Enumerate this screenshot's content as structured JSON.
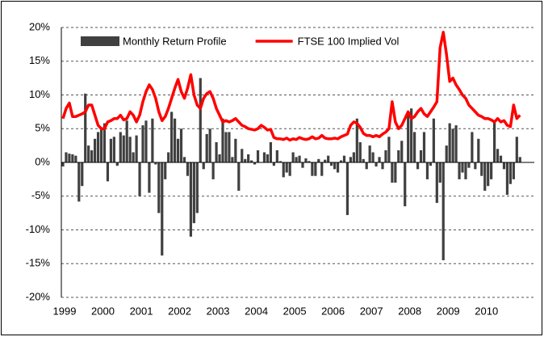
{
  "chart_data": {
    "type": "bar",
    "categories": [
      "1999",
      null,
      null,
      null,
      null,
      null,
      null,
      null,
      null,
      null,
      null,
      null,
      "2000",
      null,
      null,
      null,
      null,
      null,
      null,
      null,
      null,
      null,
      null,
      null,
      "2001",
      null,
      null,
      null,
      null,
      null,
      null,
      null,
      null,
      null,
      null,
      null,
      "2002",
      null,
      null,
      null,
      null,
      null,
      null,
      null,
      null,
      null,
      null,
      null,
      "2003",
      null,
      null,
      null,
      null,
      null,
      null,
      null,
      null,
      null,
      null,
      null,
      "2004",
      null,
      null,
      null,
      null,
      null,
      null,
      null,
      null,
      null,
      null,
      null,
      "2005",
      null,
      null,
      null,
      null,
      null,
      null,
      null,
      null,
      null,
      null,
      null,
      "2006",
      null,
      null,
      null,
      null,
      null,
      null,
      null,
      null,
      null,
      null,
      null,
      "2007",
      null,
      null,
      null,
      null,
      null,
      null,
      null,
      null,
      null,
      null,
      null,
      "2008",
      null,
      null,
      null,
      null,
      null,
      null,
      null,
      null,
      null,
      null,
      null,
      "2009",
      null,
      null,
      null,
      null,
      null,
      null,
      null,
      null,
      null,
      null,
      null,
      "2010",
      null,
      null,
      null,
      null,
      null,
      null,
      null,
      null,
      null,
      null,
      null
    ],
    "series": [
      {
        "name": "Monthly Return Profile",
        "type": "bar",
        "color": "#404040",
        "values": [
          -0.6,
          1.5,
          1.3,
          1.2,
          1,
          -5.8,
          -3.5,
          10.2,
          2.5,
          1.8,
          3.5,
          4.5,
          5.2,
          5.8,
          -2.8,
          3.5,
          3.8,
          -0.5,
          4.5,
          4,
          6.2,
          3.8,
          1.5,
          4,
          -5,
          5.5,
          6.2,
          -4.5,
          6.5,
          -0.3,
          -7.5,
          -13.8,
          -2.5,
          1.5,
          7.5,
          6.5,
          3.5,
          5,
          0.8,
          -2,
          -11,
          -9,
          -7.5,
          12.5,
          -1,
          4.2,
          5,
          -2.5,
          3,
          1.2,
          6.5,
          4.5,
          4.5,
          0.8,
          3.5,
          -4.2,
          2,
          0.5,
          1.2,
          0.3,
          -0.3,
          1.8,
          0,
          1.5,
          1.2,
          3,
          -0.5,
          1.8,
          0.2,
          -2.2,
          -1.5,
          -2,
          1.5,
          0.8,
          1,
          -0.8,
          0.6,
          0.2,
          -2,
          -2,
          0.5,
          -2,
          0.4,
          1,
          -0.5,
          -1,
          -1.5,
          0.3,
          1,
          -7.8,
          0.8,
          1.5,
          6.5,
          3,
          0.5,
          -1,
          2.5,
          1.5,
          -0.6,
          0.8,
          -1,
          1.8,
          3.8,
          -3,
          -3,
          1.8,
          3.2,
          -6.5,
          7.5,
          8,
          4.5,
          -1,
          1.8,
          4.5,
          -2.5,
          -0.5,
          6.5,
          -6,
          -3,
          -14.5,
          2.5,
          5.8,
          5,
          5.5,
          -2.5,
          -1.5,
          -2.5,
          -0.8,
          4.5,
          -1,
          3.5,
          -2,
          -4.2,
          -3.5,
          -2.5,
          6,
          2,
          1,
          -1,
          -4.8,
          -3.2,
          -2.5,
          3.8,
          0.8
        ]
      },
      {
        "name": "FTSE 100 Implied Vol",
        "type": "line",
        "color": "#ff0000",
        "values": [
          6.5,
          8,
          8.8,
          6.8,
          6.8,
          7,
          7.2,
          7.5,
          8.5,
          8.5,
          7,
          5.5,
          5,
          5,
          6,
          6.2,
          6.5,
          6.5,
          7,
          6.3,
          6.5,
          7.5,
          7,
          6,
          7,
          9,
          10.5,
          11.5,
          10.8,
          9.5,
          7.5,
          6.2,
          6.8,
          8,
          9.5,
          11,
          12.3,
          10.5,
          9.5,
          11,
          13,
          10,
          8.5,
          8,
          9.5,
          10.2,
          10.5,
          9.5,
          8,
          7,
          6,
          6.2,
          6,
          6.2,
          6.5,
          6,
          5.5,
          5.3,
          5,
          4.9,
          4.8,
          5,
          5.5,
          5.2,
          4.8,
          4.9,
          3.7,
          3.5,
          3.5,
          3.4,
          3.6,
          3.3,
          3.5,
          3.4,
          3.7,
          3.5,
          3.4,
          3.5,
          3.8,
          3.5,
          3.6,
          4,
          3.6,
          3.5,
          3.5,
          3.6,
          3.5,
          3.8,
          4,
          4.2,
          5.5,
          6,
          5.8,
          5.2,
          4.3,
          4,
          4,
          3.8,
          4,
          3.8,
          4.2,
          4.5,
          5,
          9,
          6,
          5,
          5.5,
          6.5,
          7.5,
          6.5,
          6.8,
          7.5,
          8,
          7.2,
          6.8,
          7.5,
          8.2,
          9,
          17,
          19.3,
          16,
          12,
          12.5,
          11.5,
          10.8,
          10,
          9.5,
          8.5,
          8,
          7.5,
          7,
          6.8,
          6.5,
          6.5,
          6.3,
          6,
          6.5,
          6,
          6.2,
          5.5,
          5.3,
          8.5,
          6.5,
          7
        ]
      }
    ],
    "ylim": [
      -20,
      20
    ],
    "yticks": [
      {
        "value": -20,
        "label": "-20%"
      },
      {
        "value": -15,
        "label": "-15%"
      },
      {
        "value": -10,
        "label": "-10%"
      },
      {
        "value": -5,
        "label": "-5%"
      },
      {
        "value": 0,
        "label": "0%"
      },
      {
        "value": 5,
        "label": "5%"
      },
      {
        "value": 10,
        "label": "10%"
      },
      {
        "value": 15,
        "label": "15%"
      },
      {
        "value": 20,
        "label": "20%"
      }
    ],
    "grid": true,
    "legend": "top"
  }
}
